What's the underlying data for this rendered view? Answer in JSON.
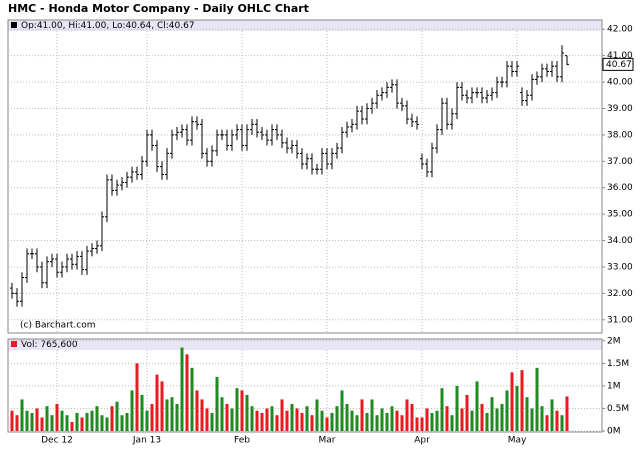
{
  "chart_data": [
    {
      "type": "ohlc",
      "title": "HMC - Honda Motor Company - Daily OHLC Chart",
      "legend": "Op:41.00, Hi:41.00, Lo:40.64, Cl:40.67",
      "source": "(c) Barchart.com",
      "last_label": "40.67",
      "color": "#000000",
      "grid": true,
      "categories": [
        null,
        null,
        null,
        null,
        null,
        null,
        null,
        null,
        null,
        "Dec 12",
        null,
        null,
        null,
        null,
        null,
        null,
        null,
        null,
        null,
        null,
        null,
        null,
        null,
        null,
        null,
        null,
        null,
        "Jan 13",
        null,
        null,
        null,
        null,
        null,
        null,
        null,
        null,
        null,
        null,
        null,
        null,
        null,
        null,
        null,
        null,
        null,
        null,
        "Feb",
        null,
        null,
        null,
        null,
        null,
        null,
        null,
        null,
        null,
        null,
        null,
        null,
        null,
        null,
        null,
        null,
        "Mar",
        null,
        null,
        null,
        null,
        null,
        null,
        null,
        null,
        null,
        null,
        null,
        null,
        null,
        null,
        null,
        null,
        null,
        null,
        "Apr",
        null,
        null,
        null,
        null,
        null,
        null,
        null,
        null,
        null,
        null,
        null,
        null,
        null,
        null,
        null,
        null,
        null,
        null,
        "May",
        null,
        null,
        null,
        null,
        null,
        null,
        null,
        null,
        null,
        null
      ],
      "open": [
        32.2,
        32.0,
        31.7,
        32.6,
        33.5,
        33.5,
        33.0,
        32.4,
        33.2,
        33.3,
        32.8,
        33.0,
        33.3,
        33.1,
        33.4,
        32.9,
        33.6,
        33.7,
        33.8,
        34.9,
        36.3,
        35.9,
        36.1,
        36.2,
        36.4,
        36.6,
        36.5,
        37.0,
        38.0,
        37.6,
        36.8,
        36.5,
        37.3,
        38.0,
        38.1,
        38.2,
        37.8,
        38.5,
        38.4,
        37.3,
        37.0,
        37.4,
        38.0,
        38.0,
        37.6,
        38.0,
        38.2,
        37.6,
        38.2,
        38.4,
        38.1,
        38.0,
        37.8,
        38.2,
        38.0,
        37.7,
        37.5,
        37.6,
        37.3,
        36.9,
        37.1,
        36.7,
        36.7,
        37.3,
        36.9,
        37.3,
        37.5,
        38.1,
        38.3,
        38.4,
        38.9,
        38.6,
        39.0,
        39.2,
        39.5,
        39.6,
        39.8,
        39.9,
        39.2,
        39.1,
        38.6,
        38.5,
        37.1,
        36.9,
        36.6,
        37.5,
        38.2,
        39.2,
        38.4,
        38.8,
        39.8,
        39.5,
        39.4,
        39.6,
        39.6,
        39.4,
        39.5,
        39.6,
        40.0,
        40.0,
        40.6,
        40.4,
        39.6,
        39.3,
        39.5,
        40.1,
        40.2,
        40.5,
        40.4,
        40.6,
        40.2,
        41.0
      ],
      "high": [
        32.4,
        32.2,
        32.8,
        33.7,
        33.7,
        33.7,
        33.2,
        33.4,
        33.5,
        33.5,
        33.2,
        33.5,
        33.5,
        33.6,
        33.6,
        33.8,
        33.9,
        34.0,
        35.1,
        36.5,
        36.5,
        36.3,
        36.4,
        36.6,
        36.8,
        36.8,
        37.2,
        38.2,
        38.2,
        37.8,
        37.0,
        37.5,
        38.2,
        38.3,
        38.4,
        38.4,
        38.7,
        38.7,
        38.6,
        37.5,
        37.6,
        38.2,
        38.2,
        38.2,
        38.2,
        38.4,
        38.4,
        38.4,
        38.6,
        38.6,
        38.3,
        38.2,
        38.4,
        38.4,
        38.2,
        37.9,
        37.8,
        37.8,
        37.5,
        37.3,
        37.3,
        36.9,
        37.5,
        37.5,
        37.5,
        37.7,
        38.3,
        38.5,
        38.6,
        39.1,
        39.1,
        39.2,
        39.4,
        39.7,
        39.8,
        40.0,
        40.1,
        40.1,
        39.4,
        39.3,
        38.8,
        38.7,
        37.3,
        37.1,
        37.7,
        38.4,
        39.4,
        39.4,
        39.0,
        40.0,
        40.0,
        39.7,
        39.8,
        39.8,
        39.8,
        39.7,
        39.8,
        40.2,
        40.2,
        40.8,
        40.8,
        40.8,
        39.8,
        39.7,
        40.3,
        40.4,
        40.7,
        40.7,
        40.8,
        40.8,
        41.4,
        41.0
      ],
      "low": [
        31.8,
        31.5,
        31.5,
        32.4,
        33.3,
        32.8,
        32.2,
        32.2,
        33.0,
        32.6,
        32.6,
        32.8,
        32.9,
        32.9,
        32.7,
        32.7,
        33.4,
        33.5,
        33.6,
        34.7,
        35.7,
        35.7,
        35.9,
        36.0,
        36.2,
        36.3,
        36.3,
        36.8,
        37.4,
        36.6,
        36.3,
        36.3,
        37.1,
        37.8,
        37.9,
        37.6,
        37.6,
        38.2,
        37.1,
        36.8,
        36.8,
        37.2,
        37.8,
        37.4,
        37.4,
        37.8,
        37.4,
        37.4,
        38.0,
        37.9,
        37.8,
        37.6,
        37.6,
        37.8,
        37.5,
        37.3,
        37.3,
        37.1,
        36.7,
        36.7,
        36.5,
        36.5,
        36.5,
        36.7,
        36.7,
        37.1,
        37.3,
        37.9,
        38.1,
        38.2,
        38.4,
        38.4,
        38.8,
        39.0,
        39.3,
        39.4,
        39.6,
        39.0,
        38.9,
        38.4,
        38.3,
        38.2,
        36.7,
        36.4,
        36.4,
        37.3,
        38.0,
        38.2,
        38.2,
        38.6,
        39.3,
        39.2,
        39.2,
        39.4,
        39.2,
        39.2,
        39.3,
        39.4,
        39.8,
        39.8,
        40.2,
        40.2,
        39.1,
        39.1,
        39.3,
        39.9,
        40.0,
        40.2,
        40.2,
        40.0,
        40.0,
        40.64
      ],
      "close": [
        32.0,
        31.7,
        32.6,
        33.5,
        33.5,
        33.0,
        32.4,
        33.2,
        33.3,
        32.8,
        33.0,
        33.3,
        33.1,
        33.4,
        32.9,
        33.6,
        33.7,
        33.8,
        34.9,
        36.3,
        35.9,
        36.1,
        36.2,
        36.4,
        36.6,
        36.5,
        37.0,
        38.0,
        37.6,
        36.8,
        36.5,
        37.3,
        38.0,
        38.1,
        38.2,
        37.8,
        38.5,
        38.4,
        37.3,
        37.0,
        37.4,
        38.0,
        38.0,
        37.6,
        38.0,
        38.2,
        37.6,
        38.2,
        38.4,
        38.1,
        38.0,
        37.8,
        38.2,
        38.0,
        37.7,
        37.5,
        37.6,
        37.3,
        36.9,
        37.1,
        36.7,
        36.7,
        37.3,
        36.9,
        37.3,
        37.5,
        38.1,
        38.3,
        38.4,
        38.9,
        38.6,
        39.0,
        39.2,
        39.5,
        39.6,
        39.8,
        39.9,
        39.2,
        39.1,
        38.6,
        38.5,
        38.4,
        36.9,
        36.6,
        37.5,
        38.2,
        39.2,
        38.4,
        38.8,
        39.8,
        39.5,
        39.4,
        39.6,
        39.6,
        39.4,
        39.5,
        39.6,
        40.0,
        40.0,
        40.6,
        40.4,
        40.6,
        39.3,
        39.5,
        40.1,
        40.2,
        40.5,
        40.4,
        40.6,
        40.2,
        41.1,
        40.67
      ],
      "ylim": [
        30.5,
        42.35
      ],
      "yticks": [
        {
          "value": 31,
          "label": "31.00"
        },
        {
          "value": 32,
          "label": "32.00"
        },
        {
          "value": 33,
          "label": "33.00"
        },
        {
          "value": 34,
          "label": "34.00"
        },
        {
          "value": 35,
          "label": "35.00"
        },
        {
          "value": 36,
          "label": "36.00"
        },
        {
          "value": 37,
          "label": "37.00"
        },
        {
          "value": 38,
          "label": "38.00"
        },
        {
          "value": 39,
          "label": "39.00"
        },
        {
          "value": 40,
          "label": "40.00"
        },
        {
          "value": 41,
          "label": "41.00"
        },
        {
          "value": 42,
          "label": "42.00"
        }
      ]
    },
    {
      "type": "bar",
      "legend": "Vol: 765,600",
      "up_color": "#1f8a1f",
      "down_color": "#e8191f",
      "grid": true,
      "values": [
        0.45,
        0.35,
        0.7,
        0.45,
        0.4,
        0.5,
        0.3,
        0.55,
        0.35,
        0.6,
        0.45,
        0.35,
        0.2,
        0.4,
        0.3,
        0.4,
        0.45,
        0.55,
        0.35,
        0.3,
        0.55,
        0.65,
        0.35,
        0.4,
        0.9,
        1.5,
        0.8,
        0.45,
        0.6,
        1.25,
        1.1,
        0.7,
        0.75,
        0.6,
        1.85,
        1.7,
        1.4,
        0.9,
        0.7,
        0.5,
        0.4,
        1.2,
        0.75,
        0.6,
        0.5,
        0.95,
        0.9,
        0.8,
        0.55,
        0.45,
        0.4,
        0.5,
        0.55,
        0.35,
        0.7,
        0.45,
        0.6,
        0.5,
        0.4,
        0.55,
        0.35,
        0.7,
        0.45,
        0.3,
        0.4,
        0.55,
        0.9,
        0.6,
        0.45,
        0.35,
        0.7,
        0.4,
        0.7,
        0.35,
        0.5,
        0.4,
        0.55,
        0.45,
        0.35,
        0.7,
        0.6,
        0.3,
        0.3,
        0.5,
        0.4,
        0.45,
        0.95,
        0.55,
        0.35,
        1.0,
        0.5,
        0.8,
        0.45,
        1.1,
        0.6,
        0.4,
        0.75,
        0.5,
        0.6,
        0.9,
        1.3,
        1.0,
        1.35,
        0.75,
        0.5,
        1.4,
        0.55,
        0.35,
        0.7,
        0.45,
        0.35,
        0.7656
      ],
      "ylim": [
        0,
        2.04
      ],
      "yticks": [
        {
          "value": 0,
          "label": "0M"
        },
        {
          "value": 0.5,
          "label": "0.5M"
        },
        {
          "value": 1,
          "label": "1M"
        },
        {
          "value": 1.5,
          "label": "1.5M"
        },
        {
          "value": 2,
          "label": "2M"
        }
      ]
    }
  ]
}
